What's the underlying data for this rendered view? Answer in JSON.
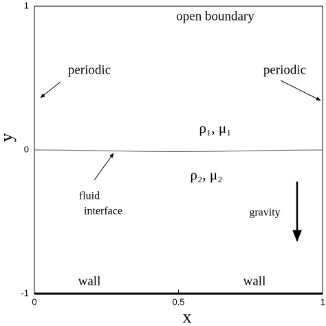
{
  "chart_data": {
    "type": "line",
    "x_label": "x",
    "y_label": "y",
    "xlim": [
      0,
      1
    ],
    "ylim": [
      -1,
      1
    ],
    "xticks": [
      0,
      0.5,
      1
    ],
    "yticks": [
      -1,
      0,
      1
    ],
    "series": [
      {
        "name": "fluid interface",
        "color": "#555555",
        "x": [
          0,
          0.125,
          0.25,
          0.375,
          0.5,
          0.625,
          0.75,
          0.875,
          1
        ],
        "values": [
          0,
          -0.002,
          -0.006,
          -0.01,
          -0.012,
          -0.01,
          -0.006,
          -0.002,
          0
        ]
      }
    ],
    "annotations": [
      "open boundary",
      "periodic",
      "periodic",
      "ρ₁, μ₁",
      "ρ₂, μ₂",
      "fluid",
      "interface",
      "gravity",
      "wall",
      "wall"
    ]
  }
}
